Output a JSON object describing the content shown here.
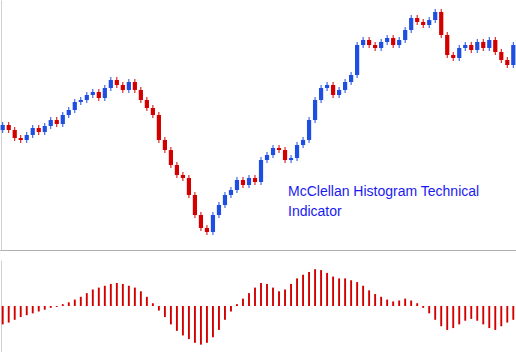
{
  "chart_data": [
    {
      "type": "candlestick",
      "annotations": [
        "McClellan Histogram Technical",
        "Indicator"
      ],
      "categories": [
        null,
        null,
        null,
        null,
        null,
        null,
        null,
        null,
        null,
        null,
        null,
        null,
        null,
        null,
        null,
        null,
        null,
        null,
        null,
        null,
        null,
        null,
        null,
        null,
        null,
        null,
        null,
        null,
        null,
        null,
        null,
        null,
        null,
        null,
        null,
        null,
        null,
        null,
        null,
        null,
        null,
        null,
        null,
        null,
        null,
        null,
        null,
        null,
        null,
        null,
        null,
        null,
        null,
        null,
        null,
        null,
        null,
        null,
        null,
        null,
        null,
        null,
        null,
        null,
        null,
        null,
        null,
        null,
        null,
        null,
        null,
        null,
        null,
        null,
        null,
        null,
        null,
        null,
        null,
        null,
        null,
        null,
        null,
        null,
        null,
        null
      ],
      "open": [
        120,
        125,
        120,
        112,
        110,
        115,
        122,
        118,
        124,
        130,
        126,
        135,
        140,
        148,
        150,
        155,
        158,
        152,
        162,
        170,
        165,
        160,
        168,
        160,
        150,
        142,
        135,
        110,
        100,
        85,
        75,
        72,
        55,
        35,
        22,
        18,
        35,
        45,
        55,
        60,
        70,
        65,
        72,
        68,
        90,
        95,
        102,
        100,
        90,
        92,
        105,
        110,
        130,
        150,
        162,
        165,
        155,
        160,
        168,
        175,
        205,
        210,
        205,
        202,
        208,
        212,
        205,
        210,
        220,
        232,
        228,
        225,
        230,
        238,
        215,
        195,
        192,
        202,
        205,
        200,
        208,
        202,
        210,
        198,
        190,
        185
      ],
      "high": [
        128,
        128,
        123,
        115,
        118,
        125,
        125,
        127,
        133,
        133,
        138,
        143,
        151,
        153,
        158,
        161,
        161,
        165,
        173,
        173,
        168,
        171,
        171,
        163,
        153,
        145,
        138,
        113,
        103,
        88,
        78,
        75,
        58,
        38,
        25,
        38,
        48,
        58,
        63,
        73,
        73,
        75,
        75,
        93,
        98,
        105,
        105,
        103,
        95,
        108,
        113,
        133,
        153,
        165,
        168,
        168,
        163,
        171,
        178,
        208,
        213,
        213,
        208,
        211,
        215,
        215,
        213,
        223,
        235,
        235,
        231,
        233,
        241,
        241,
        218,
        198,
        205,
        208,
        208,
        211,
        211,
        213,
        213,
        201,
        193,
        208
      ],
      "low": [
        117,
        117,
        109,
        107,
        107,
        112,
        115,
        115,
        121,
        123,
        123,
        132,
        137,
        145,
        147,
        152,
        149,
        149,
        159,
        162,
        157,
        157,
        157,
        147,
        139,
        132,
        107,
        97,
        82,
        72,
        69,
        52,
        32,
        19,
        15,
        15,
        32,
        42,
        52,
        57,
        62,
        62,
        65,
        65,
        87,
        92,
        97,
        87,
        87,
        89,
        102,
        107,
        127,
        147,
        159,
        152,
        152,
        157,
        165,
        172,
        202,
        202,
        199,
        199,
        205,
        202,
        202,
        207,
        217,
        225,
        222,
        222,
        227,
        212,
        192,
        189,
        189,
        199,
        197,
        197,
        199,
        199,
        195,
        187,
        182,
        182
      ],
      "close": [
        125,
        120,
        112,
        110,
        115,
        122,
        118,
        124,
        130,
        126,
        135,
        140,
        148,
        150,
        155,
        158,
        152,
        162,
        170,
        165,
        160,
        168,
        160,
        150,
        142,
        135,
        110,
        100,
        85,
        75,
        72,
        55,
        35,
        22,
        18,
        35,
        45,
        55,
        60,
        70,
        65,
        72,
        68,
        90,
        95,
        102,
        100,
        90,
        92,
        105,
        110,
        130,
        150,
        162,
        165,
        155,
        160,
        168,
        175,
        205,
        210,
        205,
        202,
        208,
        212,
        205,
        210,
        220,
        232,
        228,
        225,
        230,
        238,
        215,
        195,
        192,
        202,
        205,
        200,
        208,
        202,
        210,
        198,
        190,
        185,
        205
      ],
      "colors": [
        "#1f4fe0",
        "#d40000",
        "#d40000",
        "#d40000",
        "#1f4fe0",
        "#1f4fe0",
        "#d40000",
        "#1f4fe0",
        "#1f4fe0",
        "#d40000",
        "#1f4fe0",
        "#1f4fe0",
        "#1f4fe0",
        "#1f4fe0",
        "#1f4fe0",
        "#1f4fe0",
        "#d40000",
        "#1f4fe0",
        "#1f4fe0",
        "#d40000",
        "#d40000",
        "#1f4fe0",
        "#d40000",
        "#d40000",
        "#d40000",
        "#d40000",
        "#d40000",
        "#d40000",
        "#d40000",
        "#d40000",
        "#d40000",
        "#d40000",
        "#d40000",
        "#d40000",
        "#d40000",
        "#1f4fe0",
        "#1f4fe0",
        "#1f4fe0",
        "#1f4fe0",
        "#1f4fe0",
        "#d40000",
        "#1f4fe0",
        "#d40000",
        "#1f4fe0",
        "#1f4fe0",
        "#1f4fe0",
        "#d40000",
        "#d40000",
        "#1f4fe0",
        "#1f4fe0",
        "#1f4fe0",
        "#1f4fe0",
        "#1f4fe0",
        "#1f4fe0",
        "#1f4fe0",
        "#d40000",
        "#1f4fe0",
        "#1f4fe0",
        "#1f4fe0",
        "#1f4fe0",
        "#1f4fe0",
        "#d40000",
        "#d40000",
        "#1f4fe0",
        "#1f4fe0",
        "#d40000",
        "#1f4fe0",
        "#1f4fe0",
        "#1f4fe0",
        "#d40000",
        "#d40000",
        "#1f4fe0",
        "#1f4fe0",
        "#d40000",
        "#d40000",
        "#d40000",
        "#1f4fe0",
        "#1f4fe0",
        "#d40000",
        "#1f4fe0",
        "#d40000",
        "#1f4fe0",
        "#d40000",
        "#d40000",
        "#d40000",
        "#1f4fe0"
      ],
      "ylim": [
        0,
        250
      ],
      "tick_labels": false
    },
    {
      "type": "bar",
      "categories": [
        null,
        null,
        null,
        null,
        null,
        null,
        null,
        null,
        null,
        null,
        null,
        null,
        null,
        null,
        null,
        null,
        null,
        null,
        null,
        null,
        null,
        null,
        null,
        null,
        null,
        null,
        null,
        null,
        null,
        null,
        null,
        null,
        null,
        null,
        null,
        null,
        null,
        null,
        null,
        null,
        null,
        null,
        null,
        null,
        null,
        null,
        null,
        null,
        null,
        null,
        null,
        null,
        null,
        null,
        null,
        null,
        null,
        null,
        null,
        null,
        null,
        null,
        null,
        null,
        null,
        null,
        null,
        null,
        null,
        null,
        null,
        null,
        null,
        null,
        null,
        null,
        null,
        null,
        null,
        null,
        null,
        null,
        null,
        null,
        null,
        null
      ],
      "values": [
        -20,
        -18,
        -15,
        -12,
        -10,
        -8,
        -6,
        -4,
        -2,
        -1,
        2,
        4,
        7,
        10,
        14,
        18,
        20,
        22,
        24,
        25,
        24,
        22,
        20,
        16,
        10,
        3,
        -5,
        -12,
        -20,
        -27,
        -32,
        -36,
        -40,
        -42,
        -40,
        -34,
        -26,
        -15,
        -6,
        2,
        8,
        14,
        20,
        25,
        24,
        20,
        16,
        18,
        24,
        30,
        34,
        37,
        40,
        39,
        36,
        32,
        30,
        30,
        28,
        26,
        22,
        17,
        13,
        10,
        7,
        5,
        6,
        8,
        6,
        3,
        -2,
        -8,
        -15,
        -22,
        -26,
        -24,
        -20,
        -16,
        -14,
        -16,
        -20,
        -24,
        -26,
        -22,
        -18,
        -15
      ],
      "color": "#d40000",
      "ylim": [
        -50,
        50
      ],
      "tick_labels": false
    }
  ]
}
